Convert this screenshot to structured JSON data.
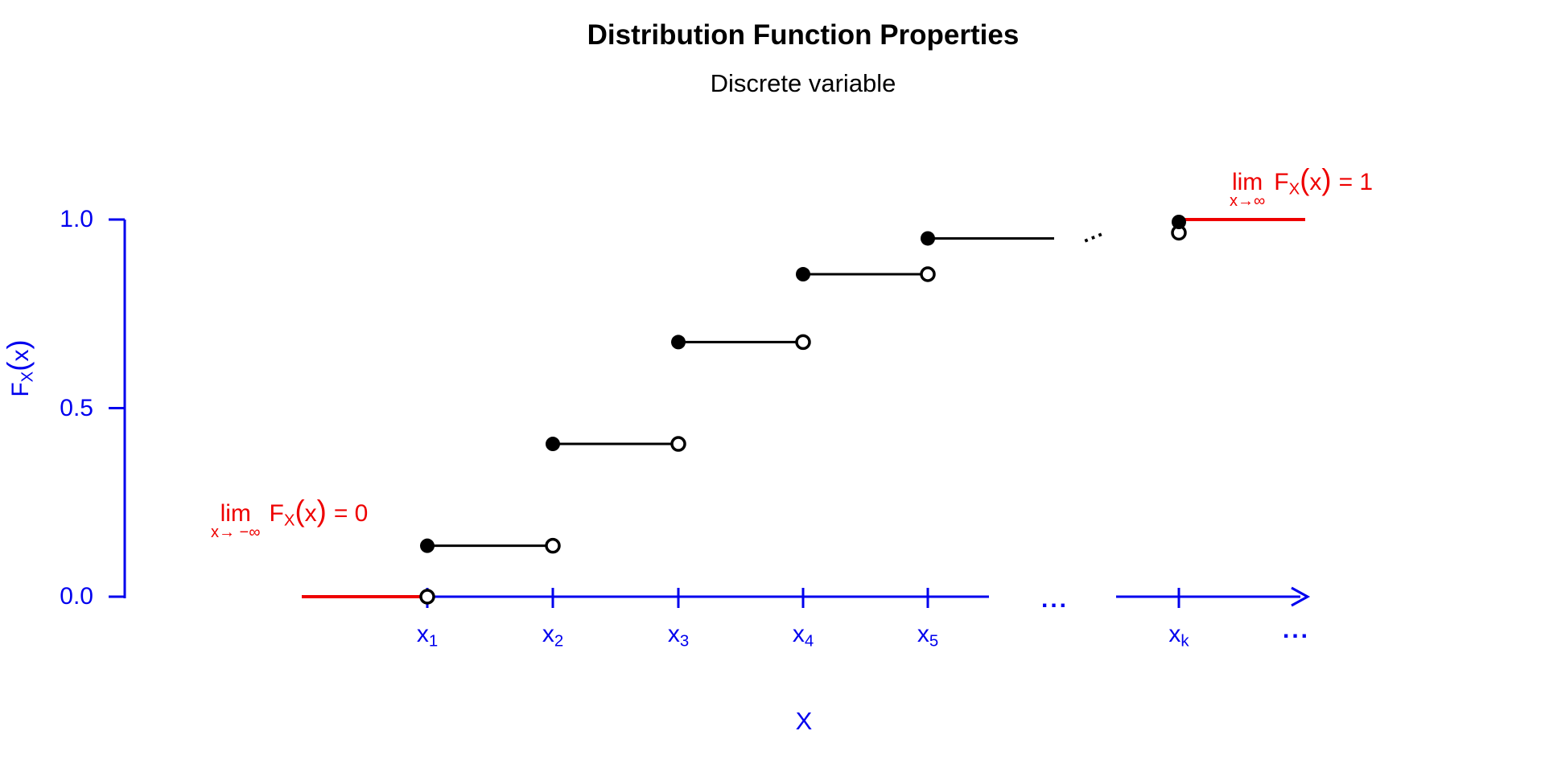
{
  "title": "Distribution Function Properties",
  "subtitle": "Discrete variable",
  "colors": {
    "blue": "#0000EE",
    "red": "#EE0000",
    "black": "#000000"
  },
  "y_axis": {
    "label": {
      "f": "F",
      "sub": "X",
      "open": "(",
      "var": "x",
      "close": ")"
    },
    "ticks": [
      {
        "label": "1.0",
        "value": 1
      },
      {
        "label": "0.5",
        "value": 0.5
      },
      {
        "label": "0.0",
        "value": 0
      }
    ]
  },
  "x_axis": {
    "label": "X",
    "ticks": [
      {
        "main": "x",
        "sub": "1",
        "key": "x1"
      },
      {
        "main": "x",
        "sub": "2",
        "key": "x2"
      },
      {
        "main": "x",
        "sub": "3",
        "key": "x3"
      },
      {
        "main": "x",
        "sub": "4",
        "key": "x4"
      },
      {
        "main": "x",
        "sub": "5",
        "key": "x5"
      },
      {
        "main": "x",
        "sub": "k",
        "key": "xk"
      }
    ],
    "gap_ellipsis": "...",
    "end_ellipsis": "..."
  },
  "mid_ellipsis": "...",
  "annotations": {
    "lower": {
      "lim": "lim",
      "sub": "x→ −∞",
      "f": "F",
      "fsub": "X",
      "open": "(",
      "var": "x",
      "close": ")",
      "eq": "= 0"
    },
    "upper": {
      "lim": "lim",
      "sub": "x→∞",
      "f": "F",
      "fsub": "X",
      "open": "(",
      "var": "x",
      "close": ")",
      "eq": "= 1"
    }
  },
  "chart_data": {
    "type": "step",
    "title": "Distribution Function Properties",
    "subtitle": "Discrete variable",
    "xlabel": "X",
    "ylabel": "F_X(x)",
    "x_categories": [
      "x1",
      "x2",
      "x3",
      "x4",
      "x5",
      "xk"
    ],
    "y_range": [
      0,
      1
    ],
    "y_ticks": [
      0,
      0.5,
      1
    ],
    "grid": false,
    "legend": null,
    "steps": [
      {
        "from": "x1",
        "to": "x2",
        "F": 0.135,
        "left_closed": true,
        "right_open": true
      },
      {
        "from": "x2",
        "to": "x3",
        "F": 0.405,
        "left_closed": true,
        "right_open": true
      },
      {
        "from": "x3",
        "to": "x4",
        "F": 0.675,
        "left_closed": true,
        "right_open": true
      },
      {
        "from": "x4",
        "to": "x5",
        "F": 0.855,
        "left_closed": true,
        "right_open": true
      },
      {
        "from": "x5",
        "to": null,
        "F": 0.95,
        "left_closed": true,
        "right_open": false
      }
    ],
    "open_point_on_axis": {
      "x": "x1",
      "F": 0
    },
    "xk_points": {
      "open_F": 0.965,
      "closed_F": 1.0
    },
    "limits": {
      "x_to_neg_inf": 0,
      "x_to_pos_inf": 1
    }
  }
}
